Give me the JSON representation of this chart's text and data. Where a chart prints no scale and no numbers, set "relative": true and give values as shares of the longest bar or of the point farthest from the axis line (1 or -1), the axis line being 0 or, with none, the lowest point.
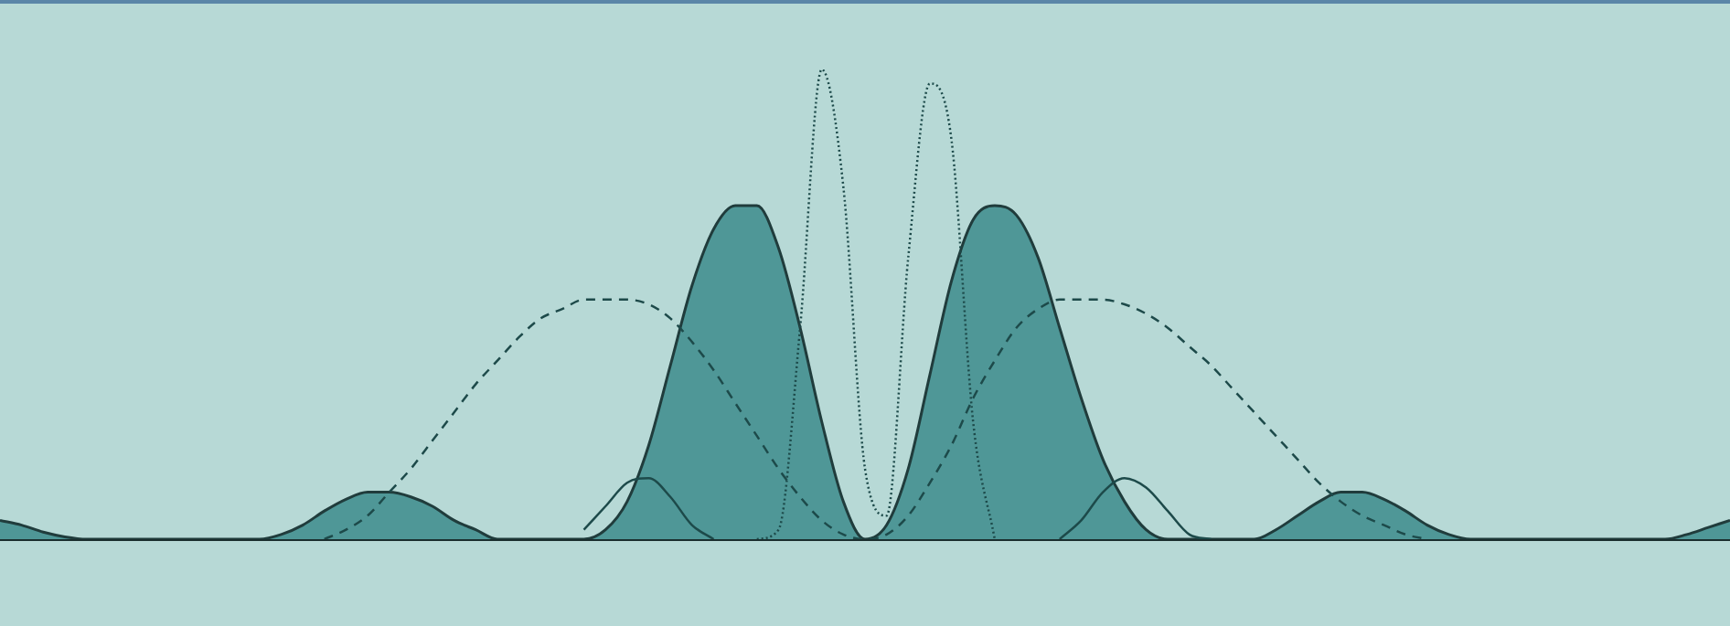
{
  "chart_data": {
    "type": "line",
    "relative": true,
    "tick_labels": false,
    "categories": [
      null,
      null,
      null,
      null,
      null,
      null,
      null,
      null,
      null,
      null,
      null,
      null,
      null,
      null,
      null,
      null,
      null,
      null,
      null,
      null,
      null,
      null,
      null,
      null,
      null,
      null,
      null,
      null,
      null,
      null,
      null,
      null,
      null,
      null,
      null,
      null,
      null,
      null,
      null,
      null,
      null,
      null,
      null,
      null,
      null,
      null,
      null,
      null,
      null,
      null,
      null,
      null,
      null,
      null,
      null,
      null,
      null,
      null,
      null,
      null,
      null,
      null,
      null,
      null,
      null,
      null,
      null,
      null,
      null,
      null,
      null,
      null,
      null,
      null,
      null,
      null,
      null,
      null,
      null,
      null,
      null
    ],
    "series": [
      {
        "type": "area",
        "color": "#4f9797",
        "line_style": "solid",
        "values": [
          0.04,
          0.03,
          0.015,
          0.005,
          0,
          0,
          0,
          0,
          0,
          0,
          0,
          0,
          0,
          0.01,
          0.03,
          0.06,
          0.085,
          0.1,
          0.1,
          0.09,
          0.07,
          0.04,
          0.02,
          0,
          0,
          0,
          0,
          0,
          0.02,
          0.08,
          0.2,
          0.37,
          0.54,
          0.66,
          0.71,
          0.71,
          0.62,
          0.45,
          0.25,
          0.08,
          0,
          0.03,
          0.15,
          0.35,
          0.55,
          0.68,
          0.71,
          0.69,
          0.6,
          0.45,
          0.3,
          0.17,
          0.08,
          0.02,
          0,
          0,
          0,
          0,
          0,
          0.02,
          0.05,
          0.08,
          0.1,
          0.1,
          0.085,
          0.06,
          0.03,
          0.01,
          0,
          0,
          0,
          0,
          0,
          0,
          0,
          0,
          0,
          0,
          0.01,
          0.025,
          0.04
        ]
      },
      {
        "type": "line",
        "color": "#1d4a4a",
        "line_style": "dotted",
        "values": [
          null,
          null,
          null,
          null,
          null,
          null,
          null,
          null,
          null,
          null,
          null,
          null,
          null,
          null,
          null,
          null,
          null,
          null,
          null,
          null,
          null,
          null,
          null,
          null,
          null,
          null,
          null,
          null,
          null,
          null,
          null,
          null,
          null,
          null,
          null,
          0,
          0.02,
          0.45,
          1,
          0.75,
          0.15,
          0.05,
          0.6,
          0.97,
          0.85,
          0.25,
          0,
          null,
          null,
          null,
          null,
          null,
          null,
          null,
          null,
          null,
          null,
          null,
          null,
          null,
          null,
          null,
          null,
          null,
          null,
          null,
          null,
          null,
          null,
          null,
          null,
          null,
          null,
          null,
          null,
          null,
          null,
          null,
          null,
          null,
          null
        ]
      },
      {
        "type": "line",
        "color": "#1d4a4a",
        "line_style": "dashed",
        "values": [
          null,
          null,
          null,
          null,
          null,
          null,
          null,
          null,
          null,
          null,
          null,
          null,
          null,
          null,
          null,
          0,
          0.02,
          0.05,
          0.1,
          0.15,
          0.21,
          0.27,
          0.33,
          0.38,
          0.43,
          0.47,
          0.49,
          0.51,
          0.51,
          0.51,
          0.5,
          0.47,
          0.42,
          0.36,
          0.29,
          0.22,
          0.15,
          0.09,
          0.04,
          0.01,
          0,
          0.01,
          0.05,
          0.12,
          0.2,
          0.3,
          0.38,
          0.45,
          0.49,
          0.51,
          0.51,
          0.51,
          0.5,
          0.48,
          0.45,
          0.41,
          0.37,
          0.32,
          0.27,
          0.22,
          0.17,
          0.12,
          0.08,
          0.05,
          0.03,
          0.01,
          0,
          null,
          null,
          null,
          null,
          null,
          null,
          null,
          null,
          null,
          null,
          null,
          null,
          null,
          null
        ]
      },
      {
        "type": "line",
        "color": "#1d4a4a",
        "line_style": "solid",
        "values": [
          null,
          null,
          null,
          null,
          null,
          null,
          null,
          null,
          null,
          null,
          null,
          null,
          null,
          null,
          null,
          null,
          null,
          null,
          null,
          null,
          null,
          null,
          null,
          null,
          null,
          null,
          null,
          0.02,
          0.07,
          0.12,
          0.13,
          0.09,
          0.03,
          0,
          null,
          null,
          null,
          null,
          null,
          null,
          null,
          null,
          null,
          null,
          null,
          null,
          null,
          null,
          null,
          0,
          0.04,
          0.1,
          0.13,
          0.11,
          0.06,
          0.01,
          0,
          null,
          null,
          null,
          null,
          null,
          null,
          null,
          null,
          null,
          null,
          null,
          null,
          null,
          null,
          null,
          null,
          null,
          null,
          null,
          null,
          null,
          null,
          null,
          null
        ]
      }
    ]
  }
}
